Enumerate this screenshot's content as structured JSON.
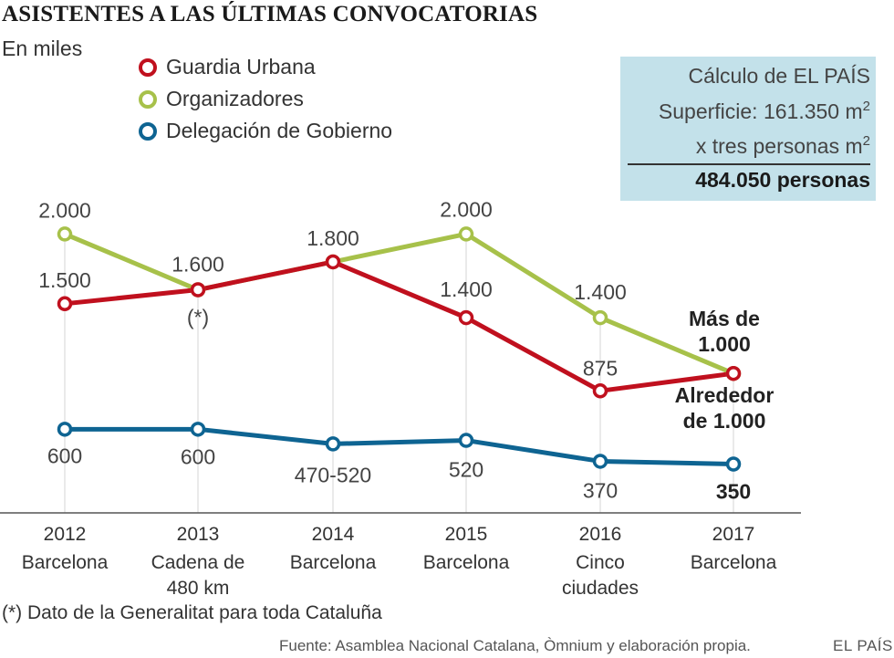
{
  "header": {
    "title": "ASISTENTES A LAS ÚLTIMAS CONVOCATORIAS",
    "subtitle": "En miles"
  },
  "calc_box": {
    "title": "Cálculo de EL PAÍS",
    "line1": "Superficie: 161.350 m",
    "line1_sup": "2",
    "line2": "x tres personas m",
    "line2_sup": "2",
    "total": "484.050 personas"
  },
  "footer": {
    "footnote": "(*) Dato de la Generalitat para toda Cataluña",
    "source": "Fuente: Asamblea Nacional Catalana, Òmnium y elaboración propia.",
    "brand": "EL PAÍS"
  },
  "chart_data": {
    "type": "line",
    "title": "ASISTENTES A LAS ÚLTIMAS CONVOCATORIAS",
    "ylabel": "En miles",
    "ylim": [
      0,
      2500
    ],
    "grid": false,
    "legend_position": "top-left",
    "categories": [
      "2012",
      "2013",
      "2014",
      "2015",
      "2016",
      "2017"
    ],
    "category_places": [
      [
        "Barcelona"
      ],
      [
        "Cadena de",
        "480 km"
      ],
      [
        "Barcelona"
      ],
      [
        "Barcelona"
      ],
      [
        "Cinco",
        "ciudades"
      ],
      [
        "Barcelona"
      ]
    ],
    "series": [
      {
        "name": "Guardia Urbana",
        "color": "#c0101e",
        "values": [
          1500,
          1600,
          1800,
          1400,
          875,
          1000
        ],
        "labels": [
          [
            "1.500"
          ],
          [
            "(*)"
          ],
          [],
          [
            "1.400"
          ],
          [
            "875"
          ],
          [
            "Alrededor",
            "de 1.000"
          ]
        ],
        "bold_last": true
      },
      {
        "name": "Organizadores",
        "color": "#a7c14a",
        "values": [
          2000,
          1600,
          1800,
          2000,
          1400,
          1000
        ],
        "labels": [
          [
            "2.000"
          ],
          [
            "1.600"
          ],
          [
            "1.800"
          ],
          [
            "2.000"
          ],
          [
            "1.400"
          ],
          [
            "Más de",
            "1.000"
          ]
        ],
        "bold_last": true
      },
      {
        "name": "Delegación de Gobierno",
        "color": "#0e6492",
        "values": [
          600,
          600,
          495,
          520,
          370,
          350
        ],
        "labels": [
          [
            "600"
          ],
          [
            "600"
          ],
          [
            "470-520"
          ],
          [
            "520"
          ],
          [
            "370"
          ],
          [
            "350"
          ]
        ],
        "bold_last": true
      }
    ]
  }
}
